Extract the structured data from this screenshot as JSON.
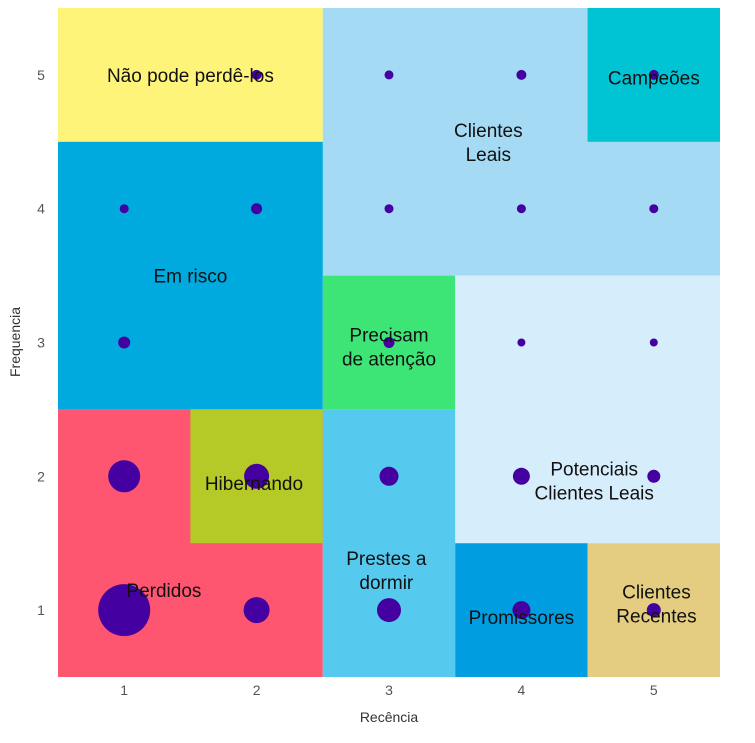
{
  "chart_data": {
    "type": "scatter",
    "xlabel": "Recência",
    "ylabel": "Frequencia",
    "xlim": [
      0.5,
      5.5
    ],
    "ylim": [
      0.5,
      5.5
    ],
    "x_ticks": [
      "1",
      "2",
      "3",
      "4",
      "5"
    ],
    "y_ticks": [
      "1",
      "2",
      "3",
      "4",
      "5"
    ],
    "grid": false,
    "segments": [
      {
        "name": "Não pode perdê-los",
        "x": [
          0.5,
          2.5
        ],
        "y": [
          4.5,
          5.5
        ],
        "color": "#FFF47A",
        "label_at": [
          1.5,
          5.0
        ]
      },
      {
        "name": "Clientes Leais",
        "x": [
          2.5,
          5.5
        ],
        "y": [
          3.5,
          5.5
        ],
        "color": "#A5DAF4",
        "label_at": [
          3.75,
          4.5
        ]
      },
      {
        "name": "Campeões",
        "x": [
          4.5,
          5.5
        ],
        "y": [
          4.5,
          5.5
        ],
        "color": "#00C4D4",
        "label_at": [
          5.0,
          4.98
        ]
      },
      {
        "name": "Em risco",
        "x": [
          0.5,
          2.5
        ],
        "y": [
          2.5,
          4.5
        ],
        "color": "#00AADF",
        "label_at": [
          1.5,
          3.5
        ]
      },
      {
        "name": "Precisam de atenção",
        "x": [
          2.5,
          3.5
        ],
        "y": [
          2.5,
          3.5
        ],
        "color": "#3DE577",
        "label_at": [
          3.0,
          2.97
        ]
      },
      {
        "name": "Potenciais Clientes Leais",
        "x": [
          3.5,
          5.5
        ],
        "y": [
          1.5,
          3.5
        ],
        "color": "#D6EDFB",
        "label_at": [
          4.55,
          1.97
        ]
      },
      {
        "name": "Perdidos",
        "x": [
          0.5,
          2.5
        ],
        "y": [
          0.5,
          2.5
        ],
        "color": "#FE5670",
        "label_at": [
          1.3,
          1.15
        ]
      },
      {
        "name": "Hibernando",
        "x": [
          1.5,
          2.5
        ],
        "y": [
          1.5,
          2.5
        ],
        "color": "#B6CA27",
        "label_at": [
          1.98,
          1.95
        ]
      },
      {
        "name": "Prestes a dormir",
        "x": [
          2.5,
          3.5
        ],
        "y": [
          0.5,
          2.5
        ],
        "color": "#56C9EE",
        "label_at": [
          2.98,
          1.3
        ]
      },
      {
        "name": "Promissores",
        "x": [
          3.5,
          4.5
        ],
        "y": [
          0.5,
          1.5
        ],
        "color": "#009EE1",
        "label_at": [
          4.0,
          0.95
        ]
      },
      {
        "name": "Clientes Recentes",
        "x": [
          4.5,
          5.5
        ],
        "y": [
          0.5,
          1.5
        ],
        "color": "#E4CC80",
        "label_at": [
          5.02,
          1.05
        ]
      }
    ],
    "points": [
      {
        "x": 1,
        "y": 1,
        "size": 26
      },
      {
        "x": 2,
        "y": 1,
        "size": 13
      },
      {
        "x": 3,
        "y": 1,
        "size": 12
      },
      {
        "x": 4,
        "y": 1,
        "size": 9
      },
      {
        "x": 5,
        "y": 1,
        "size": 7
      },
      {
        "x": 1,
        "y": 2,
        "size": 16
      },
      {
        "x": 2,
        "y": 2,
        "size": 12.5
      },
      {
        "x": 3,
        "y": 2,
        "size": 9.5
      },
      {
        "x": 4,
        "y": 2,
        "size": 8.5
      },
      {
        "x": 5,
        "y": 2,
        "size": 6.5
      },
      {
        "x": 1,
        "y": 3,
        "size": 6
      },
      {
        "x": 3,
        "y": 3,
        "size": 5.5
      },
      {
        "x": 4,
        "y": 3,
        "size": 4
      },
      {
        "x": 5,
        "y": 3,
        "size": 4
      },
      {
        "x": 1,
        "y": 4,
        "size": 4.5
      },
      {
        "x": 2,
        "y": 4,
        "size": 5.5
      },
      {
        "x": 3,
        "y": 4,
        "size": 4.5
      },
      {
        "x": 4,
        "y": 4,
        "size": 4.5
      },
      {
        "x": 5,
        "y": 4,
        "size": 4.5
      },
      {
        "x": 2,
        "y": 5,
        "size": 5
      },
      {
        "x": 3,
        "y": 5,
        "size": 4.5
      },
      {
        "x": 4,
        "y": 5,
        "size": 5
      },
      {
        "x": 5,
        "y": 5,
        "size": 5
      }
    ],
    "point_color": "#4400A0"
  }
}
